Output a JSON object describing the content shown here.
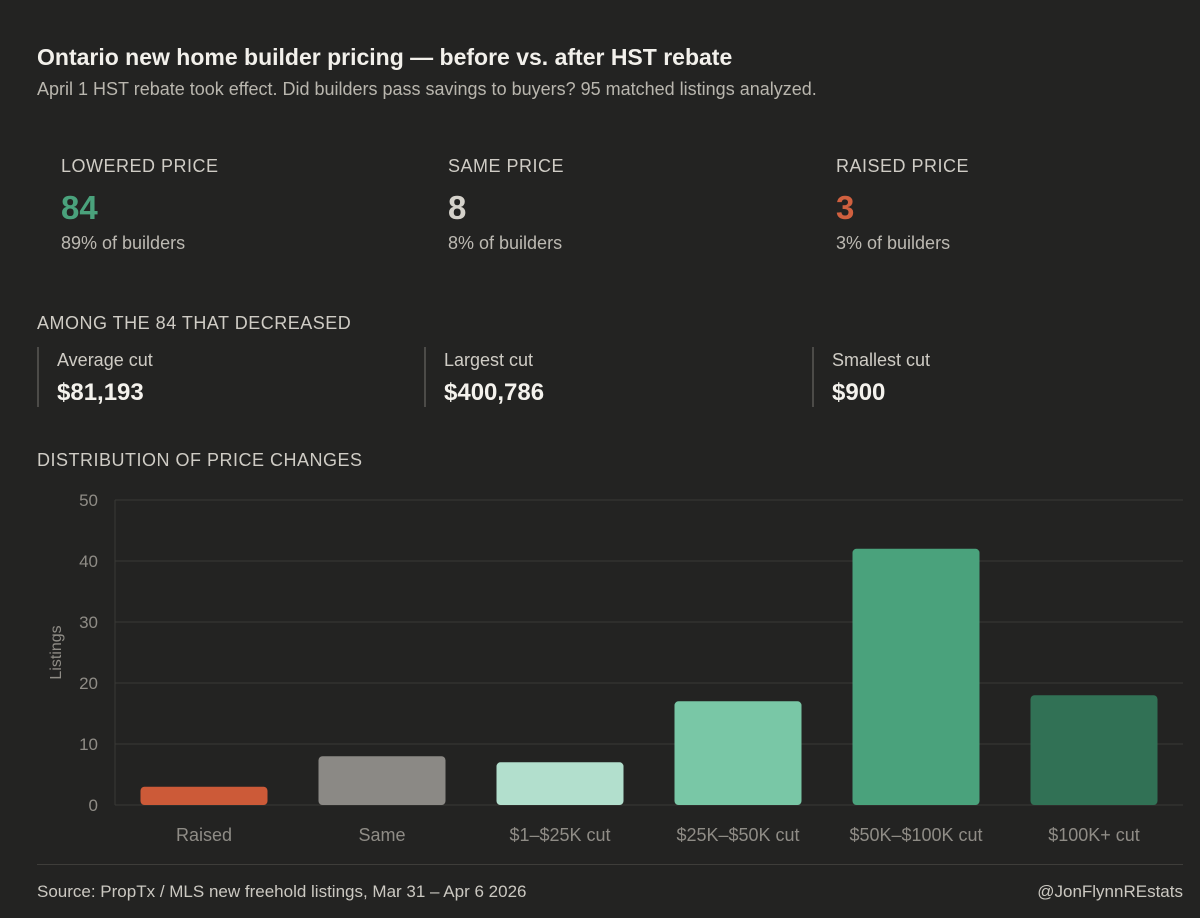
{
  "header": {
    "title": "Ontario new home builder pricing — before vs. after HST rebate",
    "subtitle": "April 1 HST rebate took effect. Did builders pass savings to buyers? 95 matched listings analyzed."
  },
  "stats": [
    {
      "label": "LOWERED PRICE",
      "value": "84",
      "sub": "89% of builders",
      "color": "#4aa27c"
    },
    {
      "label": "SAME PRICE",
      "value": "8",
      "sub": "8% of builders",
      "color": "#d5d2cb"
    },
    {
      "label": "RAISED PRICE",
      "value": "3",
      "sub": "3% of builders",
      "color": "#d0603f"
    }
  ],
  "decreased": {
    "label": "AMONG THE 84 THAT DECREASED",
    "items": [
      {
        "label": "Average cut",
        "value": "$81,193"
      },
      {
        "label": "Largest cut",
        "value": "$400,786"
      },
      {
        "label": "Smallest cut",
        "value": "$900"
      }
    ]
  },
  "distribution_label": "DISTRIBUTION OF PRICE CHANGES",
  "chart_data": {
    "type": "bar",
    "categories": [
      "Raised",
      "Same",
      "$1–$25K cut",
      "$25K–$50K cut",
      "$50K–$100K cut",
      "$100K+ cut"
    ],
    "values": [
      3,
      8,
      7,
      17,
      42,
      18
    ],
    "colors": [
      "#cc5a38",
      "#8b8985",
      "#b2dfcd",
      "#79c7a6",
      "#4aa27c",
      "#317155"
    ],
    "ylabel": "Listings",
    "ylim": [
      0,
      50
    ],
    "yticks": [
      0,
      10,
      20,
      30,
      40,
      50
    ],
    "grid": true
  },
  "footer": {
    "source": "Source: PropTx / MLS new freehold listings, Mar 31 – Apr 6 2026",
    "handle": "@JonFlynnREstats"
  }
}
